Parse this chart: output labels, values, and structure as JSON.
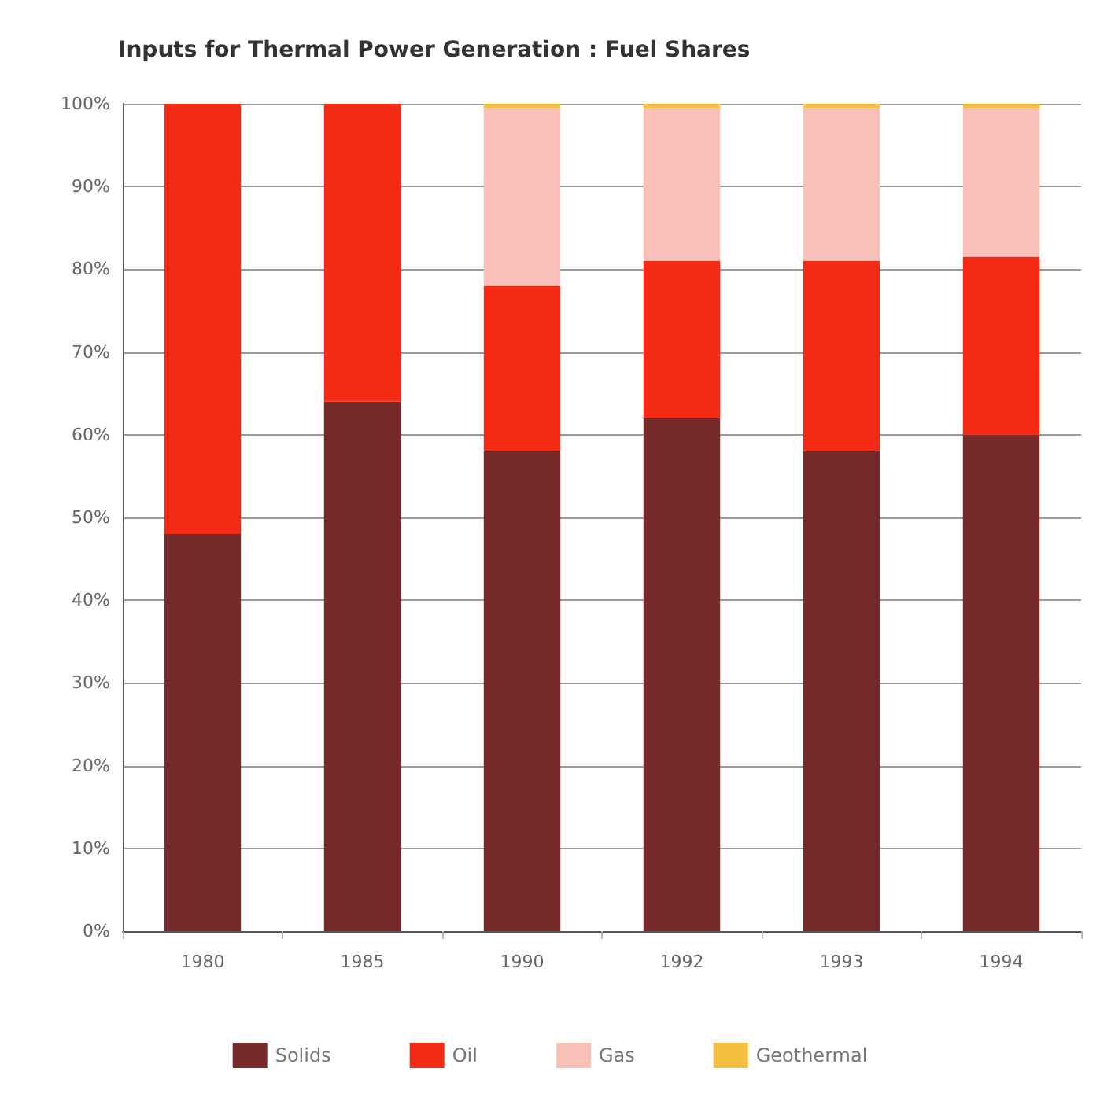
{
  "chart_data": {
    "type": "bar",
    "title": "Inputs for Thermal Power Generation : Fuel Shares",
    "stacked": true,
    "categories": [
      "1980",
      "1985",
      "1990",
      "1992",
      "1993",
      "1994"
    ],
    "series": [
      {
        "name": "Solids",
        "color": "#772a2a",
        "values": [
          48,
          64,
          58,
          62,
          58,
          60
        ]
      },
      {
        "name": "Oil",
        "color": "#f52a14",
        "values": [
          52,
          36,
          20,
          19,
          23,
          21.5
        ]
      },
      {
        "name": "Gas",
        "color": "#f9c0b8",
        "values": [
          0,
          0,
          21.5,
          18.5,
          18.5,
          18
        ]
      },
      {
        "name": "Geothermal",
        "color": "#f5c040",
        "values": [
          0,
          0,
          0.5,
          0.5,
          0.5,
          0.5
        ]
      }
    ],
    "ylim": [
      0,
      100
    ],
    "yticks": [
      {
        "value": 0,
        "label": "0%"
      },
      {
        "value": 10,
        "label": "10%"
      },
      {
        "value": 20,
        "label": "20%"
      },
      {
        "value": 30,
        "label": "30%"
      },
      {
        "value": 40,
        "label": "40%"
      },
      {
        "value": 50,
        "label": "50%"
      },
      {
        "value": 60,
        "label": "60%"
      },
      {
        "value": 70,
        "label": "70%"
      },
      {
        "value": 80,
        "label": "80%"
      },
      {
        "value": 90,
        "label": "90%"
      },
      {
        "value": 100,
        "label": "100%"
      }
    ],
    "grid": "y",
    "legend": "bottom"
  }
}
